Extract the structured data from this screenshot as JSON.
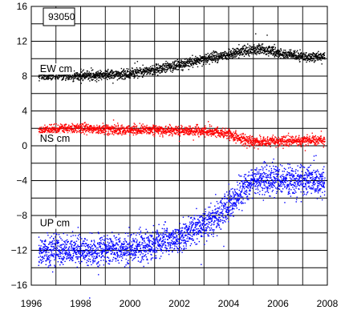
{
  "chart_data": {
    "type": "scatter",
    "title": "93050",
    "xlim": [
      1996,
      2008
    ],
    "ylim": [
      -16,
      16
    ],
    "x_ticks": [
      1996,
      1998,
      2000,
      2002,
      2004,
      2006,
      2008
    ],
    "y_ticks": [
      -16,
      -12,
      -8,
      -4,
      0,
      4,
      8,
      12,
      16
    ],
    "x_ticks_display": [
      "1996",
      "1998",
      "2000",
      "2002",
      "2004",
      "2006",
      "2008"
    ],
    "y_ticks_display": [
      "−16",
      "−12",
      "−8",
      "−4",
      "0",
      "4",
      "8",
      "12",
      "16"
    ],
    "grid": true,
    "series": [
      {
        "name": "EW cm",
        "color": "#000000",
        "trend": [
          [
            1996.3,
            8.1
          ],
          [
            1997,
            8.1
          ],
          [
            1998,
            8.0
          ],
          [
            1999,
            8.1
          ],
          [
            2000,
            8.3
          ],
          [
            2001,
            8.7
          ],
          [
            2002,
            9.3
          ],
          [
            2003,
            9.9
          ],
          [
            2004,
            10.5
          ],
          [
            2004.8,
            11.0
          ],
          [
            2005.4,
            11.1
          ],
          [
            2006,
            10.7
          ],
          [
            2007,
            10.2
          ],
          [
            2007.9,
            10.2
          ]
        ],
        "noise": 0.28
      },
      {
        "name": "NS cm",
        "color": "#ff0000",
        "trend": [
          [
            1996.3,
            1.7
          ],
          [
            1997,
            1.9
          ],
          [
            1998,
            2.0
          ],
          [
            1999,
            1.9
          ],
          [
            2000,
            1.9
          ],
          [
            2001,
            1.8
          ],
          [
            2002,
            1.7
          ],
          [
            2003,
            1.7
          ],
          [
            2004,
            1.4
          ],
          [
            2004.6,
            0.7
          ],
          [
            2005,
            0.5
          ],
          [
            2006,
            0.5
          ],
          [
            2007,
            0.6
          ],
          [
            2007.9,
            0.6
          ]
        ],
        "noise": 0.28
      },
      {
        "name": "UP cm",
        "color": "#0000ff",
        "trend": [
          [
            1996.3,
            -12.0
          ],
          [
            1997,
            -12.0
          ],
          [
            1998,
            -12.1
          ],
          [
            1999,
            -12.0
          ],
          [
            2000,
            -11.8
          ],
          [
            2001,
            -11.3
          ],
          [
            2002,
            -10.5
          ],
          [
            2002.5,
            -9.8
          ],
          [
            2003,
            -9.0
          ],
          [
            2003.5,
            -8.2
          ],
          [
            2004,
            -7.0
          ],
          [
            2004.6,
            -5.0
          ],
          [
            2005,
            -4.2
          ],
          [
            2006,
            -3.8
          ],
          [
            2007,
            -4.1
          ],
          [
            2007.9,
            -4.2
          ]
        ],
        "noise": 0.85
      }
    ]
  }
}
